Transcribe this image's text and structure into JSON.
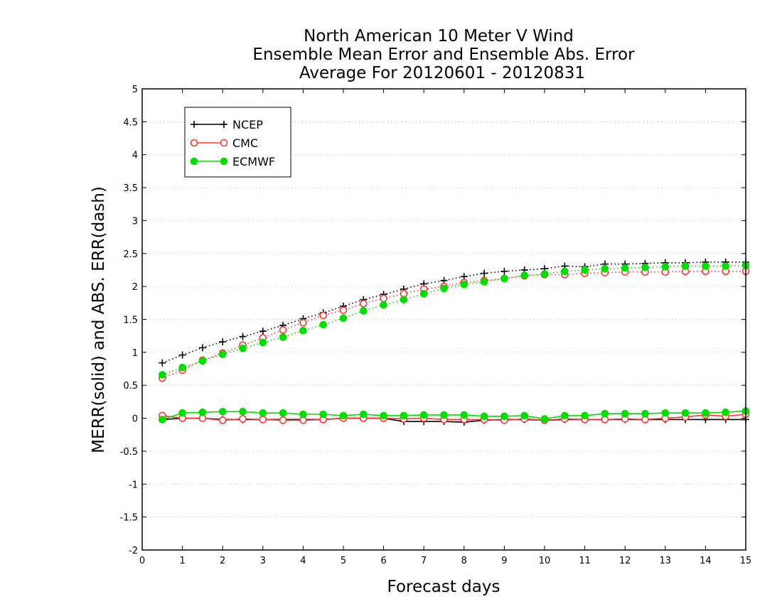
{
  "chart_data": {
    "type": "line",
    "title": [
      "North American 10 Meter V Wind",
      "Ensemble Mean Error and Ensemble Abs. Error",
      "Average For 20120601 - 20120831"
    ],
    "xlabel": "Forecast days",
    "ylabel": "MERR(solid) and ABS. ERR(dash)",
    "xlim": [
      0,
      15
    ],
    "ylim": [
      -2,
      5
    ],
    "x_ticks": [
      0,
      1,
      2,
      3,
      4,
      5,
      6,
      7,
      8,
      9,
      10,
      11,
      12,
      13,
      14,
      15
    ],
    "y_ticks": [
      -2,
      -1.5,
      -1,
      -0.5,
      0,
      0.5,
      1,
      1.5,
      2,
      2.5,
      3,
      3.5,
      4,
      4.5,
      5
    ],
    "grid": "horizontal-dotted",
    "legend_position": "top-left",
    "x": [
      0.5,
      1,
      1.5,
      2,
      2.5,
      3,
      3.5,
      4,
      4.5,
      5,
      5.5,
      6,
      6.5,
      7,
      7.5,
      8,
      8.5,
      9,
      9.5,
      10,
      10.5,
      11,
      11.5,
      12,
      12.5,
      13,
      13.5,
      14,
      14.5,
      15
    ],
    "series": [
      {
        "name": "NCEP",
        "color": "#000000",
        "marker": "plus",
        "mean_error": [
          -0.02,
          0.0,
          0.0,
          -0.02,
          -0.02,
          -0.02,
          -0.02,
          -0.02,
          -0.02,
          0.0,
          0.0,
          0.0,
          -0.05,
          -0.05,
          -0.05,
          -0.06,
          -0.03,
          -0.02,
          -0.02,
          -0.03,
          -0.02,
          -0.02,
          -0.02,
          -0.02,
          -0.02,
          -0.02,
          -0.02,
          -0.02,
          -0.02,
          -0.02
        ],
        "abs_error": [
          0.84,
          0.96,
          1.07,
          1.16,
          1.24,
          1.32,
          1.41,
          1.51,
          1.6,
          1.7,
          1.8,
          1.88,
          1.96,
          2.04,
          2.09,
          2.15,
          2.2,
          2.23,
          2.25,
          2.27,
          2.31,
          2.3,
          2.34,
          2.34,
          2.35,
          2.36,
          2.36,
          2.37,
          2.37,
          2.37
        ]
      },
      {
        "name": "CMC",
        "color": "#ff3333",
        "marker": "open-circle",
        "mean_error": [
          0.04,
          0.0,
          0.0,
          -0.03,
          -0.01,
          -0.02,
          -0.03,
          -0.03,
          -0.02,
          0.0,
          0.0,
          0.0,
          -0.01,
          0.0,
          -0.02,
          -0.02,
          -0.02,
          -0.03,
          -0.01,
          -0.03,
          -0.01,
          -0.02,
          -0.02,
          -0.01,
          -0.02,
          0.0,
          0.02,
          0.05,
          0.03,
          0.06
        ],
        "abs_error": [
          0.61,
          0.73,
          0.88,
          0.99,
          1.11,
          1.22,
          1.34,
          1.45,
          1.56,
          1.64,
          1.74,
          1.82,
          1.89,
          1.96,
          2.0,
          2.06,
          2.09,
          2.12,
          2.16,
          2.18,
          2.18,
          2.2,
          2.21,
          2.22,
          2.22,
          2.22,
          2.23,
          2.23,
          2.23,
          2.23
        ]
      },
      {
        "name": "ECMWF",
        "color": "#00dd00",
        "marker": "filled-circle",
        "mean_error": [
          -0.02,
          0.08,
          0.09,
          0.1,
          0.1,
          0.08,
          0.08,
          0.06,
          0.06,
          0.04,
          0.06,
          0.04,
          0.04,
          0.05,
          0.05,
          0.05,
          0.03,
          0.03,
          0.04,
          -0.01,
          0.04,
          0.04,
          0.07,
          0.07,
          0.07,
          0.08,
          0.08,
          0.08,
          0.09,
          0.11
        ],
        "abs_error": [
          0.66,
          0.77,
          0.87,
          0.97,
          1.06,
          1.15,
          1.23,
          1.33,
          1.42,
          1.52,
          1.63,
          1.72,
          1.8,
          1.89,
          1.97,
          2.03,
          2.07,
          2.12,
          2.17,
          2.19,
          2.23,
          2.25,
          2.27,
          2.28,
          2.29,
          2.3,
          2.31,
          2.31,
          2.31,
          2.32
        ]
      }
    ]
  }
}
